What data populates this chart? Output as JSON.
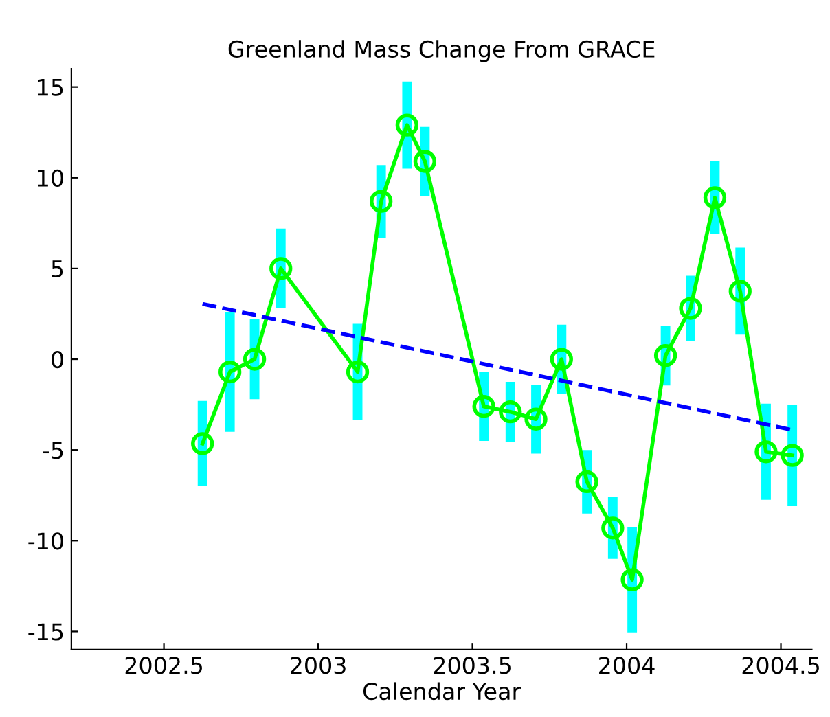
{
  "chart_data": {
    "type": "line",
    "title": "Greenland Mass Change From GRACE",
    "xlabel": "Calendar Year",
    "xlim": [
      2002.2,
      2004.6
    ],
    "xticks": [
      2002.5,
      2003,
      2003.5,
      2004,
      2004.5
    ],
    "ylim": [
      -16,
      16
    ],
    "yticks": [
      -15,
      -10,
      -5,
      0,
      5,
      10,
      15
    ],
    "grid": false,
    "marker": "circle",
    "series": [
      {
        "color": "#00ff00",
        "line_style": "solid",
        "x": [
          2002.625,
          2002.714,
          2002.794,
          2002.879,
          2003.128,
          2003.204,
          2003.288,
          2003.346,
          2003.537,
          2003.623,
          2003.706,
          2003.789,
          2003.871,
          2003.955,
          2004.018,
          2004.126,
          2004.207,
          2004.286,
          2004.368,
          2004.452,
          2004.537
        ],
        "values": [
          -4.65,
          -0.7,
          0.0,
          5.0,
          -0.7,
          8.7,
          12.9,
          10.9,
          -2.6,
          -2.9,
          -3.3,
          0.0,
          -6.75,
          -9.3,
          -12.15,
          0.2,
          2.8,
          8.9,
          3.75,
          -5.1,
          -5.3
        ],
        "errors": [
          2.35,
          3.3,
          2.2,
          2.2,
          2.65,
          2.0,
          2.4,
          1.9,
          1.9,
          1.65,
          1.9,
          1.9,
          1.75,
          1.7,
          2.9,
          1.65,
          1.8,
          2.0,
          2.4,
          2.65,
          2.8
        ]
      },
      {
        "color": "#0000ff",
        "line_style": "dashed",
        "marker": "none",
        "x": [
          2002.625,
          2004.537
        ],
        "values": [
          3.05,
          -3.9
        ]
      }
    ]
  }
}
